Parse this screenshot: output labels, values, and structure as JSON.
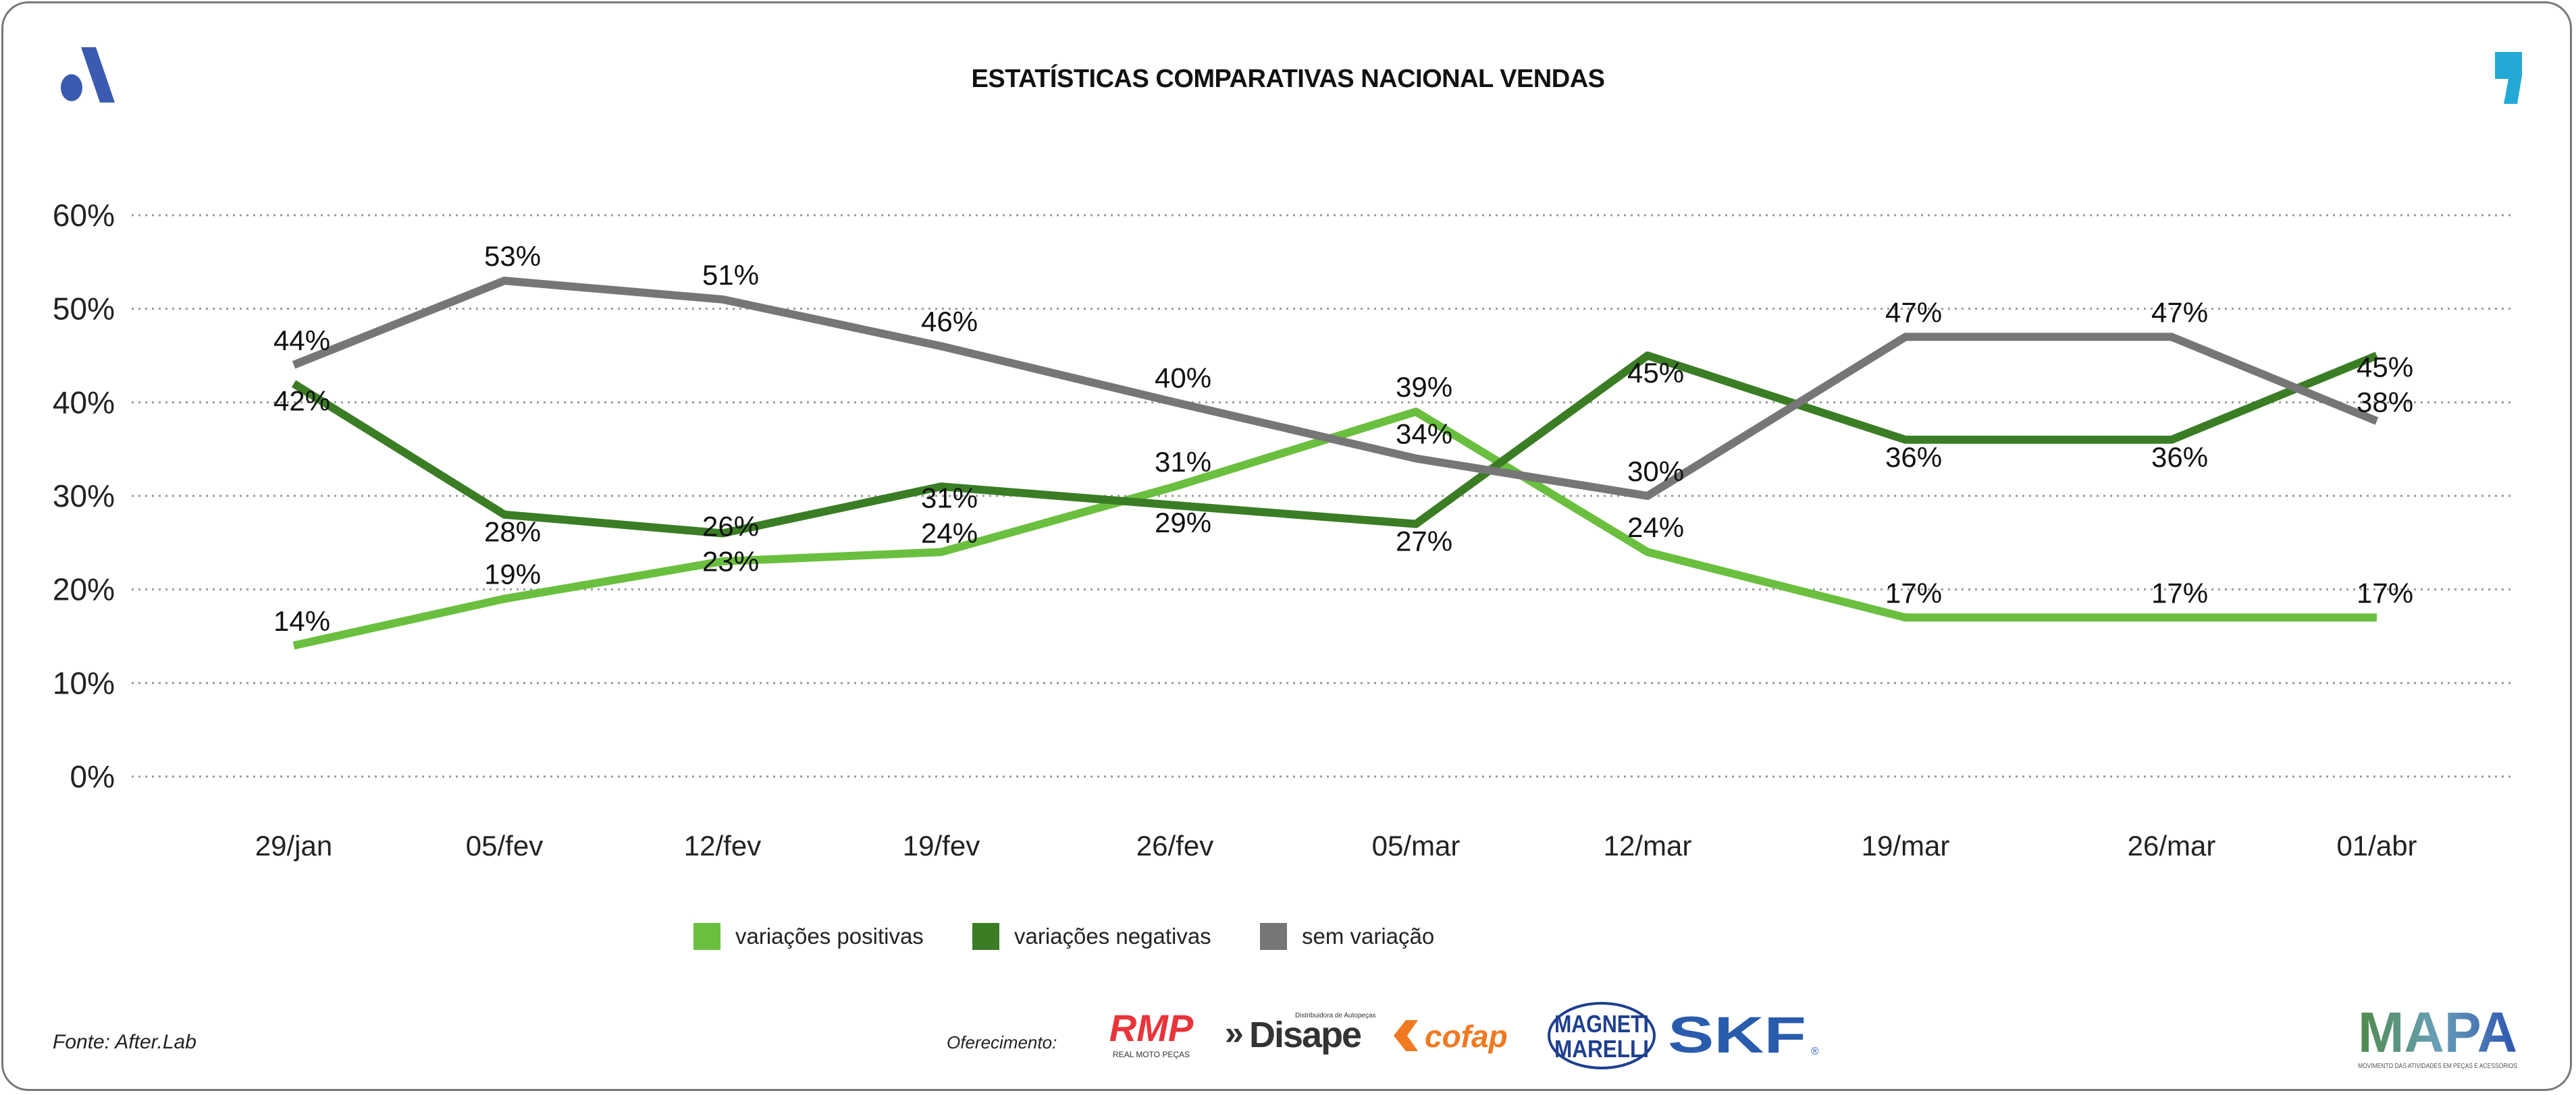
{
  "header": {
    "title": "ESTATÍSTICAS COMPARATIVAS NACIONAL VENDAS",
    "left_logo_icon": "blue-a-logo",
    "right_logo_icon": "cyan-comma-logo"
  },
  "chart_data": {
    "type": "line",
    "title": "ESTATÍSTICAS COMPARATIVAS NACIONAL VENDAS",
    "categories": [
      "29/jan",
      "05/fev",
      "12/fev",
      "19/fev",
      "26/fev",
      "05/mar",
      "12/mar",
      "19/mar",
      "26/mar",
      "01/abr"
    ],
    "y_ticks": [
      "0%",
      "10%",
      "20%",
      "30%",
      "40%",
      "50%",
      "60%"
    ],
    "ylim": [
      0,
      60
    ],
    "grid": "horizontal dotted",
    "legend_position": "bottom",
    "series": [
      {
        "name": "variações positivas",
        "color": "#6abf3f",
        "values": [
          14,
          19,
          23,
          24,
          31,
          39,
          24,
          17,
          17,
          17
        ]
      },
      {
        "name": "variações negativas",
        "color": "#3a7d25",
        "values": [
          42,
          28,
          26,
          31,
          29,
          27,
          45,
          36,
          36,
          45
        ]
      },
      {
        "name": "sem variação",
        "color": "#767676",
        "values": [
          44,
          53,
          51,
          46,
          40,
          34,
          30,
          47,
          47,
          38
        ]
      }
    ]
  },
  "footer": {
    "source": "Fonte: After.Lab",
    "sponsor_label": "Oferecimento:",
    "sponsors": [
      "RMP",
      "REAL MOTO PEÇAS",
      "Disape",
      "Distribuidora de Autopeças",
      "cofap",
      "MAGNETI",
      "MARELLI",
      "SKF"
    ],
    "brand": "MAPA",
    "brand_tagline": "MOVIMENTO DAS ATIVIDADES EM PEÇAS E ACESSÓRIOS"
  }
}
